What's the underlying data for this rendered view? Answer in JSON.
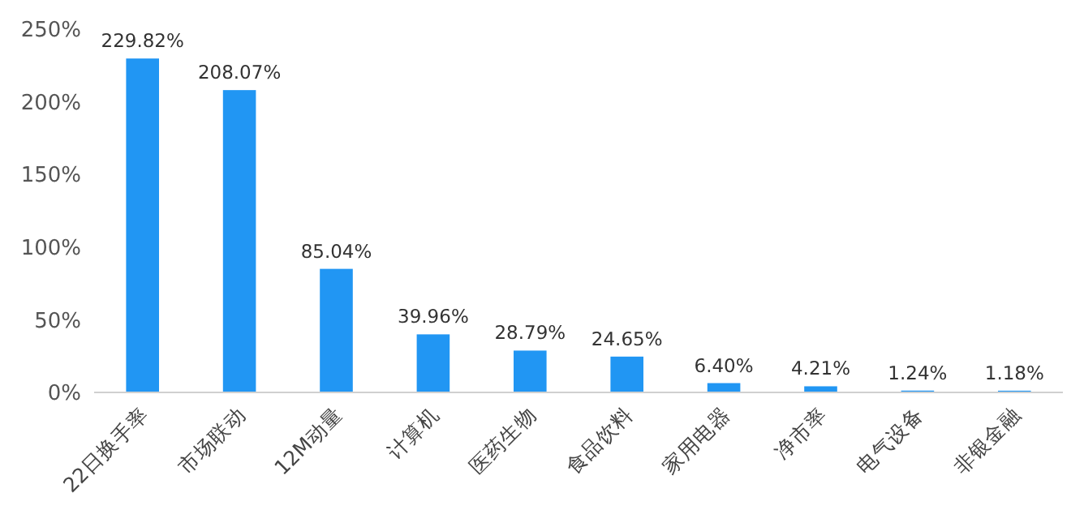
{
  "chart_data": {
    "type": "bar",
    "categories": [
      "22日换手率",
      "市场联动",
      "12M动量",
      "计算机",
      "医药生物",
      "食品饮料",
      "家用电器",
      "净市率",
      "电气设备",
      "非银金融"
    ],
    "values": [
      229.82,
      208.07,
      85.04,
      39.96,
      28.79,
      24.65,
      6.4,
      4.21,
      1.24,
      1.18
    ],
    "value_labels": [
      "229.82%",
      "208.07%",
      "85.04%",
      "39.96%",
      "28.79%",
      "24.65%",
      "6.40%",
      "4.21%",
      "1.24%",
      "1.18%"
    ],
    "color": "#2196f3",
    "ylim": [
      0,
      250
    ],
    "yticks": [
      {
        "value": 0,
        "label": "0%"
      },
      {
        "value": 50,
        "label": "50%"
      },
      {
        "value": 100,
        "label": "100%"
      },
      {
        "value": 150,
        "label": "150%"
      },
      {
        "value": 200,
        "label": "200%"
      },
      {
        "value": 250,
        "label": "250%"
      }
    ],
    "grid": false
  }
}
